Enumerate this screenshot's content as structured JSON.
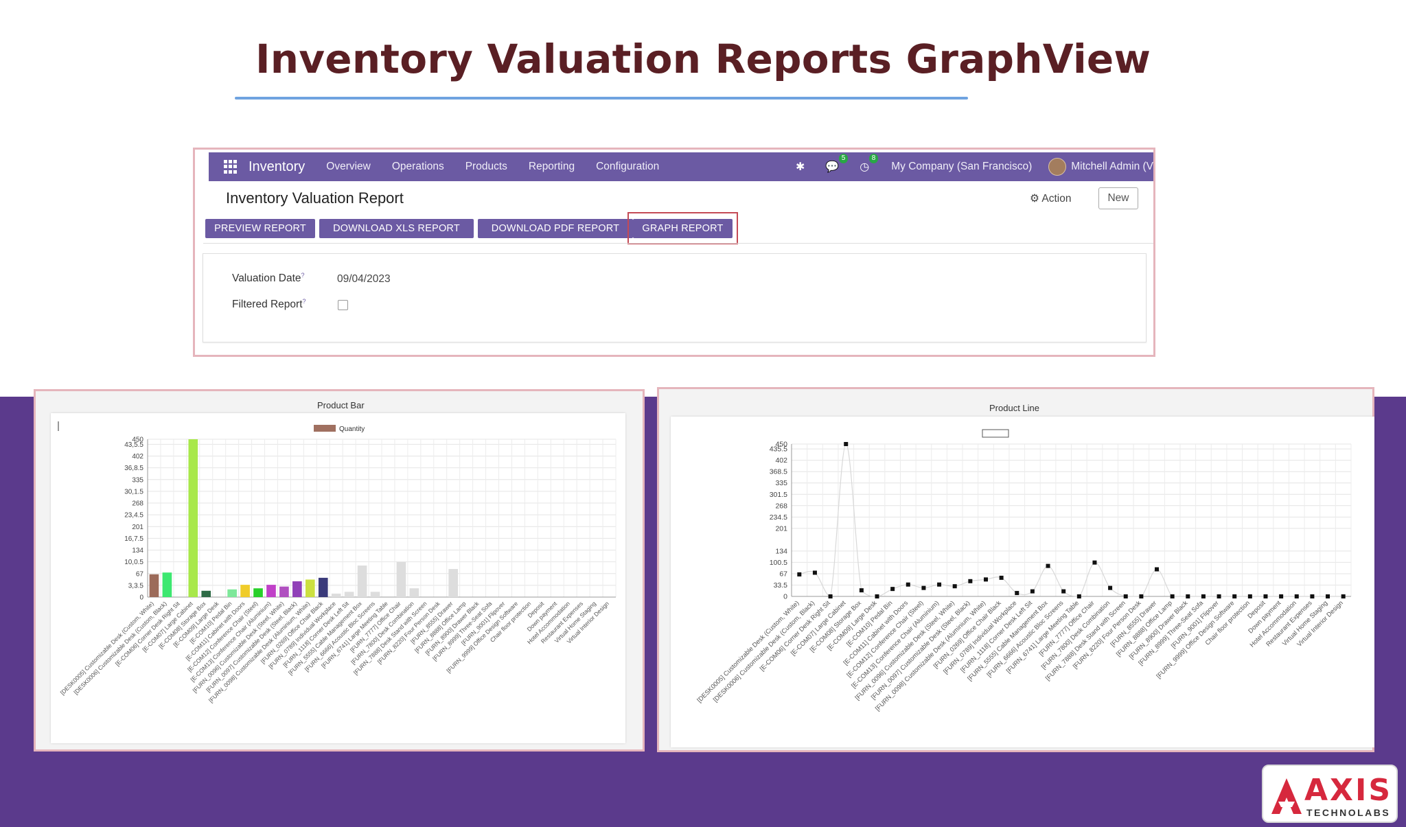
{
  "page": {
    "title": "Inventory Valuation Reports GraphView",
    "brand_color": "#5b3a8c",
    "title_color": "#5a1f24"
  },
  "navbar": {
    "app_name": "Inventory",
    "menu": [
      "Overview",
      "Operations",
      "Products",
      "Reporting",
      "Configuration"
    ],
    "messages_count": "5",
    "activities_count": "8",
    "company": "My Company (San Francisco)",
    "user": "Mitchell Admin (V"
  },
  "report": {
    "title": "Inventory Valuation Report",
    "action_label": "Action",
    "new_label": "New",
    "buttons": [
      "PREVIEW REPORT",
      "DOWNLOAD XLS REPORT",
      "DOWNLOAD PDF REPORT",
      "GRAPH REPORT"
    ],
    "valuation_date_label": "Valuation Date",
    "valuation_date_value": "09/04/2023",
    "filtered_report_label": "Filtered Report",
    "help_mark": "?"
  },
  "chart_data": [
    {
      "type": "bar",
      "title": "Product Bar",
      "legend": [
        "Quantity"
      ],
      "legend_color": "#a07060",
      "ylim": [
        0,
        450
      ],
      "ytick_labels": [
        "0",
        "3,3.5",
        "67",
        "10,0.5",
        "134",
        "16,7.5",
        "201",
        "23,4.5",
        "268",
        "30,1.5",
        "335",
        "36,8.5",
        "402",
        "43,5.5",
        "450"
      ],
      "yticks": [
        0,
        33.5,
        67,
        100.5,
        134,
        167.5,
        201,
        234.5,
        268,
        301.5,
        335,
        368.5,
        402,
        435.5,
        450
      ],
      "categories": [
        "[DESK0005] Customizable Desk (Custom, White)",
        "[DESK0006] Customizable Desk (Custom, Black)",
        "[E-COM06] Corner Desk Right Sit",
        "[E-COM07] Large Cabinet",
        "[E-COM08] Storage Box",
        "[E-COM09] Large Desk",
        "[E-COM10] Pedal Bin",
        "[E-COM11] Cabinet with Doors",
        "[E-COM12] Conference Chair (Steel)",
        "[E-COM13] Conference Chair (Aluminium)",
        "[FURN_0096] Customizable Desk (Steel, White)",
        "[FURN_0097] Customizable Desk (Steel, Black)",
        "[FURN_0098] Customizable Desk (Aluminium, White)",
        "[FURN_0269] Office Chair Black",
        "[FURN_0789] Individual Workplace",
        "[FURN_1118] Corner Desk Left Sit",
        "[FURN_5555] Cable Management Box",
        "[FURN_6666] Acoustic Bloc Screens",
        "[FURN_6741] Large Meeting Table",
        "[FURN_7777] Office Chair",
        "[FURN_7800] Desk Combination",
        "[FURN_7888] Desk Stand with Screen",
        "[FURN_8220] Four Person Desk",
        "[FURN_8555] Drawer",
        "[FURN_8888] Office Lamp",
        "[FURN_8900] Drawer Black",
        "[FURN_8999] Three-Seat Sofa",
        "[FURN_9001] Flipover",
        "[FURN_9999] Office Design Software",
        "Chair floor protection",
        "Deposit",
        "Down payment",
        "Hotel Accommodation",
        "Restaurant Expenses",
        "Virtual Home Staging",
        "Virtual Interior Design"
      ],
      "values": [
        65,
        70,
        0,
        450,
        18,
        0,
        22,
        35,
        25,
        35,
        30,
        45,
        50,
        55,
        10,
        15,
        90,
        15,
        0,
        100,
        25,
        0,
        0,
        80,
        0,
        0,
        0,
        0,
        0,
        0,
        0,
        0,
        0,
        0,
        0,
        0
      ],
      "colors": [
        "#9c6b5a",
        "#3de870",
        "#cccccc",
        "#a8e84a",
        "#2e6b46",
        "#cccccc",
        "#7ee89a",
        "#f0cc2a",
        "#28d02a",
        "#c040c8",
        "#b050c0",
        "#9040b8",
        "#cce040",
        "#3a3a7a",
        "#dddddd",
        "#dddddd",
        "#dddddd",
        "#dddddd",
        "#dddddd",
        "#dddddd",
        "#dddddd",
        "#dddddd",
        "#dddddd",
        "#dddddd",
        "#dddddd",
        "#dddddd",
        "#dddddd",
        "#dddddd",
        "#dddddd",
        "#dddddd",
        "#dddddd",
        "#dddddd",
        "#dddddd",
        "#dddddd",
        "#dddddd",
        "#dddddd"
      ]
    },
    {
      "type": "line",
      "title": "Product Line",
      "ylim": [
        0,
        450
      ],
      "ytick_labels": [
        "0",
        "33.5",
        "67",
        "100.5",
        "134",
        "201",
        "234.5",
        "268",
        "301.5",
        "335",
        "368.5",
        "402",
        "435.5",
        "450"
      ],
      "yticks": [
        0,
        33.5,
        67,
        100.5,
        134,
        201,
        234.5,
        268,
        301.5,
        335,
        368.5,
        402,
        435.5,
        450
      ],
      "categories": [
        "[DESK0005] Customizable Desk (Custom, White)",
        "[DESK0006] Customizable Desk (Custom, Black)",
        "[E-COM06] Corner Desk Right Sit",
        "[E-COM07] Large Cabinet",
        "[E-COM08] Storage Box",
        "[E-COM09] Large Desk",
        "[E-COM10] Pedal Bin",
        "[E-COM11] Cabinet with Doors",
        "[E-COM12] Conference Chair (Steel)",
        "[E-COM13] Conference Chair (Aluminium)",
        "[FURN_0096] Customizable Desk (Steel, White)",
        "[FURN_0097] Customizable Desk (Steel, Black)",
        "[FURN_0098] Customizable Desk (Aluminium, White)",
        "[FURN_0269] Office Chair Black",
        "[FURN_0789] Individual Workplace",
        "[FURN_1118] Corner Desk Left Sit",
        "[FURN_5555] Cable Management Box",
        "[FURN_6666] Acoustic Bloc Screens",
        "[FURN_6741] Large Meeting Table",
        "[FURN_7777] Office Chair",
        "[FURN_7800] Desk Combination",
        "[FURN_7888] Desk Stand with Screen",
        "[FURN_8220] Four Person Desk",
        "[FURN_8555] Drawer",
        "[FURN_8888] Office Lamp",
        "[FURN_8900] Drawer Black",
        "[FURN_8999] Three-Seat Sofa",
        "[FURN_9001] Flipover",
        "[FURN_9999] Office Design Software",
        "Chair floor protection",
        "Deposit",
        "Down payment",
        "Hotel Accommodation",
        "Restaurant Expenses",
        "Virtual Home Staging",
        "Virtual Interior Design"
      ],
      "values": [
        65,
        70,
        0,
        450,
        18,
        0,
        22,
        35,
        25,
        35,
        30,
        45,
        50,
        55,
        10,
        15,
        90,
        15,
        0,
        100,
        25,
        0,
        0,
        80,
        0,
        0,
        0,
        0,
        0,
        0,
        0,
        0,
        0,
        0,
        0,
        0
      ]
    }
  ],
  "logo": {
    "name": "AXIS",
    "sub": "TECHNOLABS"
  }
}
